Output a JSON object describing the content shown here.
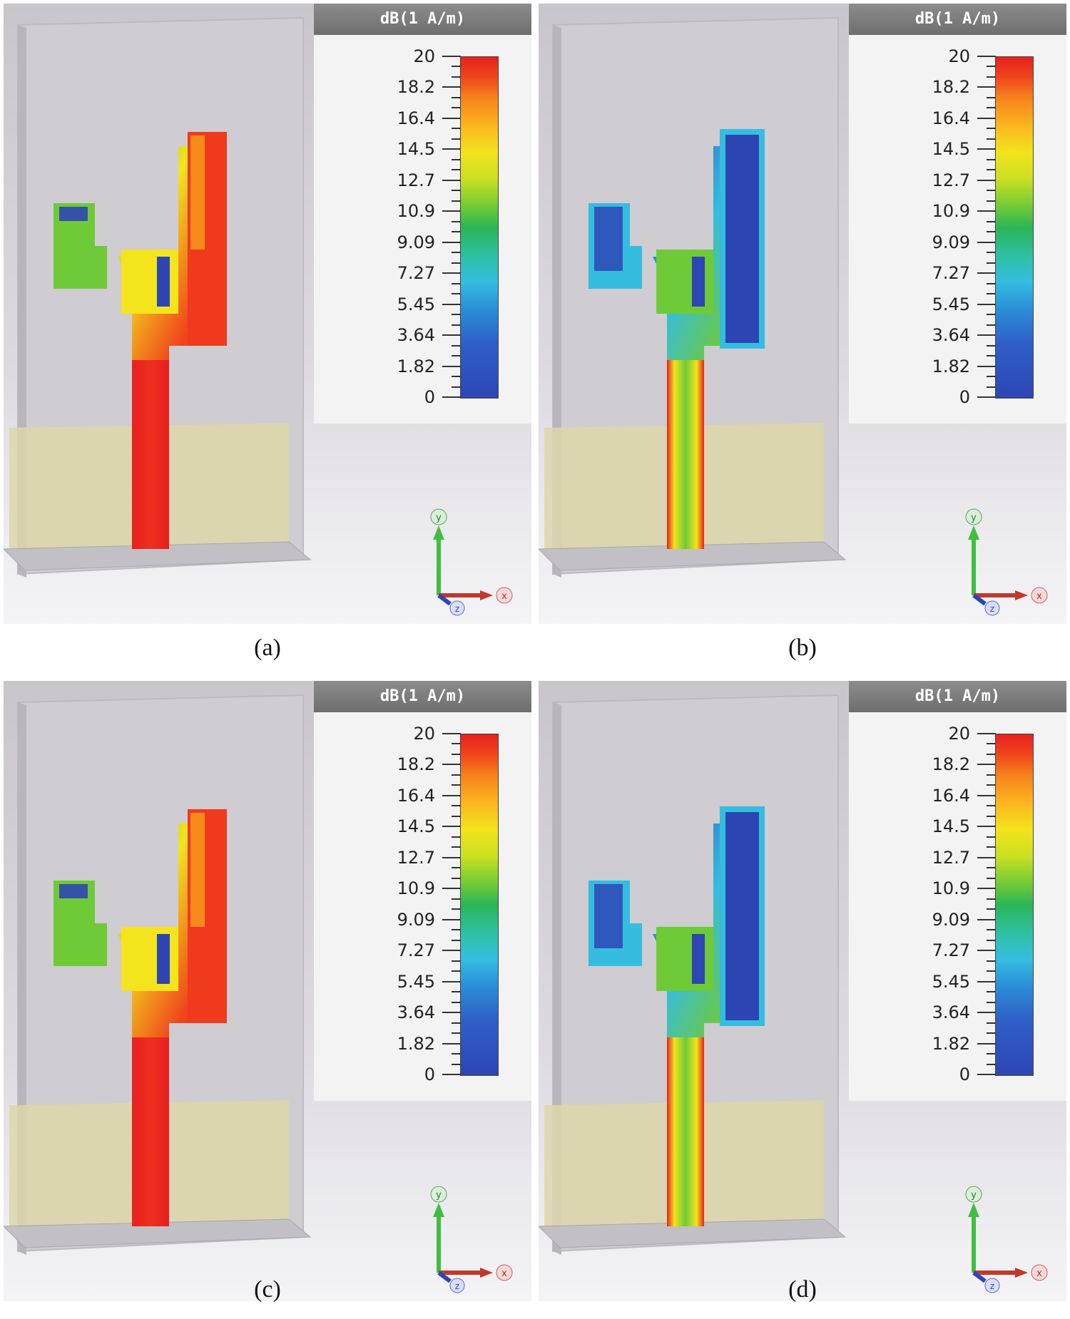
{
  "legend": {
    "unit": "dB(1 A/m)",
    "ticks": [
      "20",
      "18.2",
      "16.4",
      "14.5",
      "12.7",
      "10.9",
      "9.09",
      "7.27",
      "5.45",
      "3.64",
      "1.82",
      "0"
    ]
  },
  "axes": {
    "y": "y",
    "x": "x",
    "z": "z"
  },
  "panels": [
    {
      "caption": "(a)",
      "field": "strong"
    },
    {
      "caption": "(b)",
      "field": "mixed"
    },
    {
      "caption": "(c)",
      "field": "strong"
    },
    {
      "caption": "(d)",
      "field": "mixed"
    }
  ],
  "colors": {
    "high": "#e8201f",
    "mid_high": "#f3e41d",
    "mid": "#2bb556",
    "low": "#2d46b4",
    "substrate": "#ddd6aa",
    "background": "#d4d1d6"
  }
}
